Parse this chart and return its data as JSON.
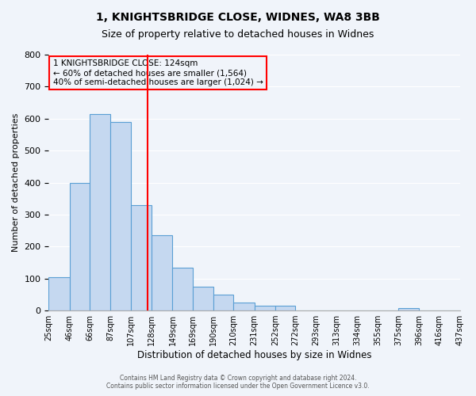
{
  "title": "1, KNIGHTSBRIDGE CLOSE, WIDNES, WA8 3BB",
  "subtitle": "Size of property relative to detached houses in Widnes",
  "xlabel": "Distribution of detached houses by size in Widnes",
  "ylabel": "Number of detached properties",
  "bar_edges": [
    25,
    46,
    66,
    87,
    107,
    128,
    149,
    169,
    190,
    210,
    231,
    252,
    272,
    293,
    313,
    334,
    355,
    375,
    396,
    416,
    437
  ],
  "bar_heights": [
    105,
    400,
    615,
    590,
    330,
    235,
    135,
    75,
    50,
    25,
    15,
    15,
    0,
    0,
    0,
    0,
    0,
    8,
    0,
    0
  ],
  "bar_color": "#c5d8f0",
  "bar_edge_color": "#5a9fd4",
  "vline_x": 124,
  "vline_color": "red",
  "ylim": [
    0,
    800
  ],
  "yticks": [
    0,
    100,
    200,
    300,
    400,
    500,
    600,
    700,
    800
  ],
  "tick_labels": [
    "25sqm",
    "46sqm",
    "66sqm",
    "87sqm",
    "107sqm",
    "128sqm",
    "149sqm",
    "169sqm",
    "190sqm",
    "210sqm",
    "231sqm",
    "252sqm",
    "272sqm",
    "293sqm",
    "313sqm",
    "334sqm",
    "355sqm",
    "375sqm",
    "396sqm",
    "416sqm",
    "437sqm"
  ],
  "annotation_box_text": "1 KNIGHTSBRIDGE CLOSE: 124sqm\n← 60% of detached houses are smaller (1,564)\n40% of semi-detached houses are larger (1,024) →",
  "annotation_box_color": "red",
  "footer_line1": "Contains HM Land Registry data © Crown copyright and database right 2024.",
  "footer_line2": "Contains public sector information licensed under the Open Government Licence v3.0.",
  "background_color": "#f0f4fa",
  "grid_color": "white",
  "fig_width": 6.0,
  "fig_height": 5.0
}
